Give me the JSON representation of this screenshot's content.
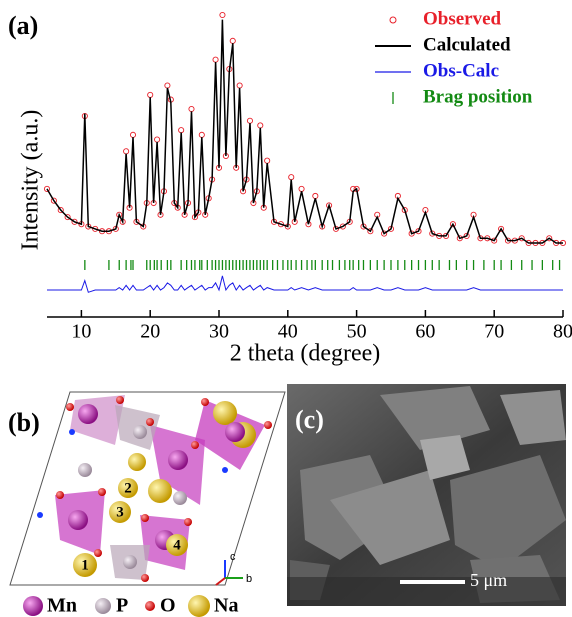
{
  "chart_data": {
    "type": "line",
    "title": "(a)",
    "x_label": "2 theta (degree)",
    "y_label": "Intensity (a.u.)",
    "xlim": [
      5,
      80
    ],
    "xticks": [
      10,
      20,
      30,
      40,
      50,
      60,
      70,
      80
    ],
    "ylim": [
      -28.5,
      100
    ],
    "x": [
      5,
      6,
      7,
      8,
      9,
      10,
      10.5,
      11,
      12,
      13,
      14,
      15,
      15.5,
      16,
      16.5,
      17,
      17.5,
      18,
      19,
      19.5,
      20,
      20.5,
      21,
      21.5,
      22,
      22.5,
      23,
      23.5,
      24,
      24.5,
      25,
      25.5,
      26,
      26.5,
      27,
      27.5,
      28,
      28.5,
      29,
      29.5,
      30,
      30.5,
      31,
      31.5,
      32,
      32.5,
      33,
      33.5,
      34,
      34.5,
      35,
      35.5,
      36,
      36.5,
      37,
      38,
      39,
      40,
      40.5,
      41,
      42,
      43,
      44,
      45,
      46,
      47,
      48,
      49,
      49.5,
      50,
      51,
      52,
      53,
      54,
      55,
      56,
      57,
      58,
      59,
      60,
      61,
      62,
      63,
      64,
      65,
      66,
      67,
      68,
      69,
      70,
      71,
      72,
      73,
      74,
      75,
      76,
      77,
      78,
      79,
      80
    ],
    "series": [
      {
        "name": "Observed",
        "color": "#e8202a",
        "values": [
          26,
          21,
          17,
          14,
          12,
          11,
          57,
          10,
          9,
          8,
          8,
          9,
          15,
          12,
          42,
          18,
          49,
          12,
          10,
          20,
          66,
          20,
          47,
          15,
          25,
          70,
          64,
          20,
          18,
          51,
          15,
          20,
          60,
          14,
          16,
          49,
          15,
          22,
          30,
          81,
          35,
          100,
          40,
          77,
          89,
          35,
          70,
          25,
          30,
          55,
          20,
          25,
          53,
          18,
          38,
          12,
          11,
          10,
          31,
          12,
          26,
          11,
          23,
          10,
          19,
          9,
          10,
          12,
          26,
          26,
          10,
          8,
          15,
          7,
          9,
          23,
          17,
          7,
          8,
          17,
          7,
          6,
          6,
          11,
          5,
          6,
          15,
          5,
          5,
          4,
          9,
          4,
          4,
          5,
          3,
          3,
          3,
          5,
          3,
          3
        ]
      },
      {
        "name": "Calculated",
        "color": "#000000",
        "values": [
          26,
          21,
          17,
          14,
          12,
          11,
          58,
          10,
          9,
          8,
          8,
          9,
          15,
          12,
          41,
          18,
          48,
          12,
          10,
          20,
          65,
          20,
          46,
          15,
          25,
          69,
          63,
          20,
          18,
          50,
          15,
          20,
          59,
          14,
          16,
          48,
          15,
          22,
          30,
          80,
          35,
          98,
          40,
          76,
          88,
          35,
          69,
          25,
          30,
          54,
          20,
          25,
          52,
          18,
          37,
          12,
          11,
          10,
          30,
          12,
          25,
          11,
          22,
          10,
          19,
          9,
          10,
          12,
          25,
          26,
          10,
          8,
          14,
          7,
          9,
          22,
          17,
          7,
          8,
          16,
          7,
          6,
          6,
          11,
          5,
          6,
          14,
          5,
          5,
          4,
          9,
          4,
          4,
          5,
          3,
          3,
          3,
          5,
          3,
          3
        ]
      },
      {
        "name": "Obs-Calc",
        "color": "#1a1ae6",
        "values": [
          -17,
          -17,
          -17,
          -17,
          -17,
          -17,
          -13,
          -18,
          -17,
          -17,
          -17,
          -17,
          -16,
          -17,
          -15,
          -17,
          -15,
          -17,
          -17,
          -16,
          -15,
          -17,
          -15,
          -17,
          -16,
          -14,
          -15,
          -17,
          -17,
          -15,
          -17,
          -16,
          -15,
          -17,
          -16,
          -15,
          -17,
          -16,
          -16,
          -14,
          -17,
          -11,
          -17,
          -15,
          -14,
          -17,
          -15,
          -17,
          -16,
          -15,
          -17,
          -16,
          -15,
          -17,
          -16,
          -17,
          -17,
          -17,
          -16,
          -17,
          -16,
          -17,
          -16,
          -17,
          -17,
          -17,
          -17,
          -17,
          -16,
          -17,
          -17,
          -17,
          -16,
          -17,
          -17,
          -16,
          -17,
          -17,
          -17,
          -16,
          -17,
          -17,
          -17,
          -17,
          -17,
          -17,
          -16,
          -17,
          -17,
          -17,
          -17,
          -17,
          -17,
          -17,
          -17,
          -17,
          -17,
          -17,
          -17,
          -17
        ]
      },
      {
        "name": "Brag position",
        "color": "#138a13",
        "x": [
          10.5,
          14,
          15.5,
          16.5,
          17.2,
          17.5,
          19.5,
          20,
          20.6,
          21,
          21.6,
          22.5,
          23,
          24.5,
          25.3,
          26,
          26.5,
          27.2,
          27.5,
          28.3,
          29,
          29.5,
          30,
          30.5,
          31,
          31.5,
          32,
          32.5,
          33,
          33.5,
          34,
          34.5,
          35,
          35.5,
          36,
          36.5,
          37,
          37.8,
          38.5,
          39.3,
          40,
          40.5,
          41.2,
          42,
          42.8,
          43.5,
          44,
          45,
          45.8,
          46.5,
          47.5,
          48.3,
          49,
          49.5,
          50.3,
          51,
          52,
          53,
          54,
          55,
          56,
          57,
          58,
          59,
          60,
          61,
          62,
          63.5,
          64.5,
          66,
          67,
          68.5,
          70,
          71,
          72.5,
          74,
          75.5,
          77,
          78.5,
          79.5
        ]
      }
    ]
  },
  "panel_b": {
    "label": "(b)",
    "atoms": [
      "1",
      "2",
      "3",
      "4"
    ],
    "axes": [
      "c",
      "b"
    ],
    "legend": [
      "Mn",
      "P",
      "O",
      "Na"
    ]
  },
  "panel_c": {
    "label": "(c)",
    "scale_bar": "5 μm"
  }
}
